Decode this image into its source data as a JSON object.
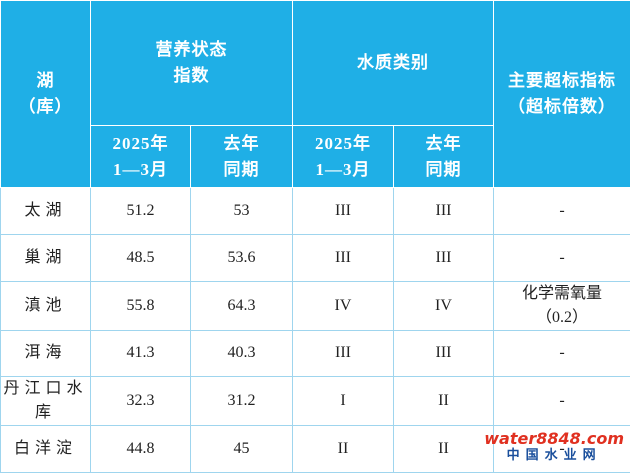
{
  "header": {
    "lake": [
      "湖",
      "（库）"
    ],
    "trophic": [
      "营养状态",
      "指数"
    ],
    "quality": [
      "水质类别"
    ],
    "exceed": [
      "主要超标指标",
      "（超标倍数）"
    ],
    "sub": [
      [
        "2025年",
        "1—3月"
      ],
      [
        "去年",
        "同期"
      ],
      [
        "2025年",
        "1—3月"
      ],
      [
        "去年",
        "同期"
      ]
    ]
  },
  "table": {
    "rows": [
      [
        "太湖",
        "51.2",
        "53",
        "III",
        "III",
        [
          "-"
        ]
      ],
      [
        "巢湖",
        "48.5",
        "53.6",
        "III",
        "III",
        [
          "-"
        ]
      ],
      [
        "滇池",
        "55.8",
        "64.3",
        "IV",
        "IV",
        [
          "化学需氧量",
          "（0.2）"
        ]
      ],
      [
        "洱海",
        "41.3",
        "40.3",
        "III",
        "III",
        [
          "-"
        ]
      ],
      [
        "丹江口水库",
        "32.3",
        "31.2",
        "I",
        "II",
        [
          "-"
        ]
      ],
      [
        "白洋淀",
        "44.8",
        "45",
        "II",
        "II",
        [
          "-"
        ]
      ]
    ]
  },
  "watermark": {
    "site": "water8848.com",
    "name": "中国水业网"
  }
}
